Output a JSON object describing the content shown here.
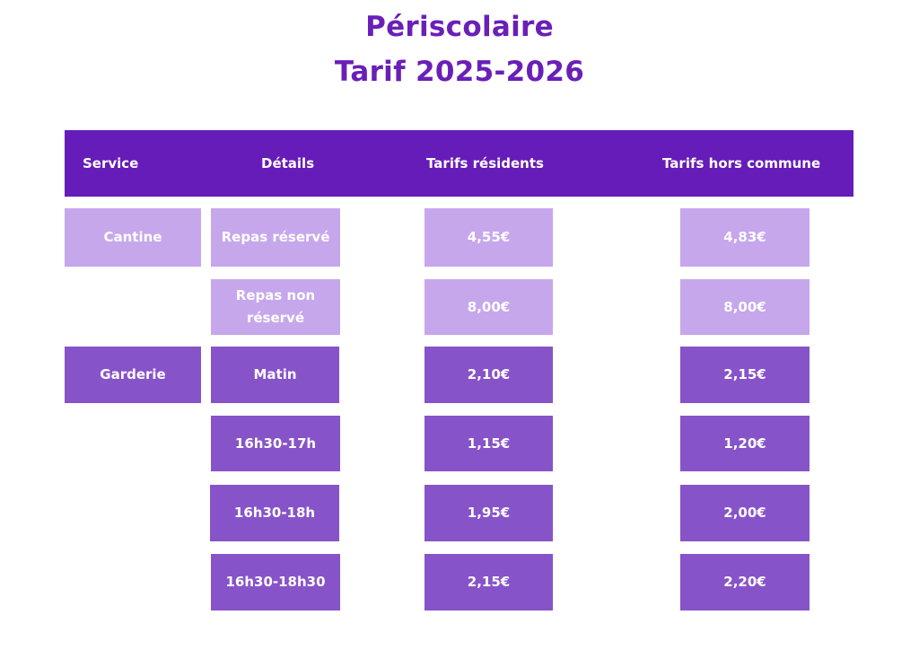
{
  "title": {
    "line1": "Périscolaire",
    "line2": "Tarif 2025-2026"
  },
  "header": {
    "service": "Service",
    "details": "Détails",
    "residents": "Tarifs résidents",
    "hors_commune": "Tarifs hors commune"
  },
  "services": {
    "cantine": "Cantine",
    "garderie": "Garderie"
  },
  "rows": [
    {
      "detail": "Repas réservé",
      "residents": "4,55€",
      "hors": "4,83€"
    },
    {
      "detail": "Repas non réservé",
      "residents": "8,00€",
      "hors": "8,00€"
    },
    {
      "detail": "Matin",
      "residents": "2,10€",
      "hors": "2,15€"
    },
    {
      "detail": "16h30-17h",
      "residents": "1,15€",
      "hors": "1,20€"
    },
    {
      "detail": "16h30-18h",
      "residents": "1,95€",
      "hors": "2,00€"
    },
    {
      "detail": "16h30-18h30",
      "residents": "2,15€",
      "hors": "2,20€"
    }
  ],
  "colors": {
    "title": "#6a1fb8",
    "header_bg": "#661cb8",
    "cantine_cells": "#c6a7ec",
    "garderie_cells": "#8753c9",
    "text": "#ffffff"
  }
}
